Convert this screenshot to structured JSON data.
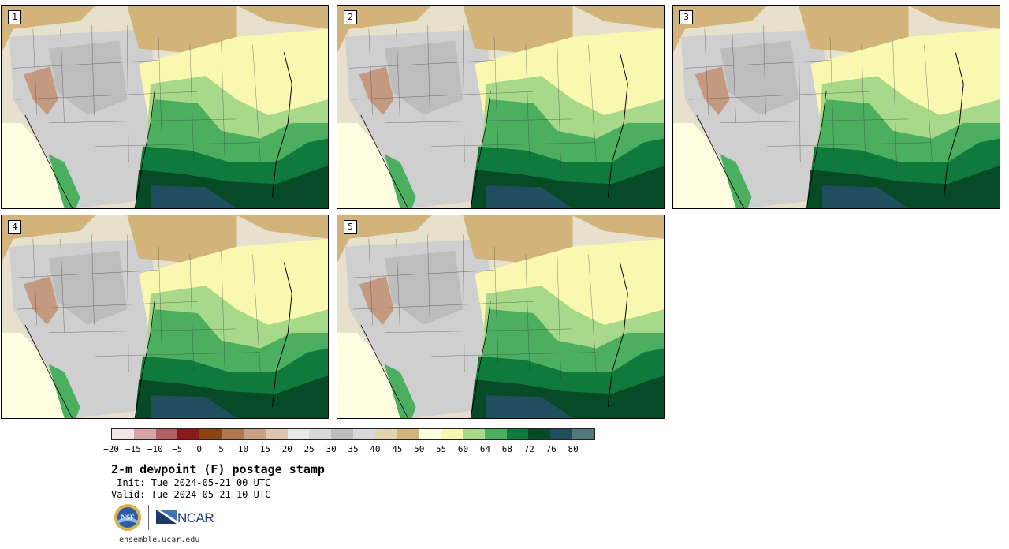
{
  "panels": [
    {
      "label": "1"
    },
    {
      "label": "2"
    },
    {
      "label": "3"
    },
    {
      "label": "4"
    },
    {
      "label": "5"
    }
  ],
  "colorbar": {
    "colors": [
      "#f3e6e6",
      "#d4a5a5",
      "#b06060",
      "#8b1a1a",
      "#8b4513",
      "#b07850",
      "#c9a085",
      "#e0c6b0",
      "#e8e8e8",
      "#d9d9d9",
      "#bdbdbd",
      "#d9d9d9",
      "#e2d4b0",
      "#d2b47a",
      "#fffde0",
      "#f8f8b0",
      "#a8d98a",
      "#4caf60",
      "#0f7a3c",
      "#064a26",
      "#1f4f5e",
      "#527a7a"
    ],
    "ticks": [
      "−20",
      "−15",
      "−10",
      "−5",
      "0",
      "5",
      "10",
      "15",
      "20",
      "25",
      "30",
      "35",
      "40",
      "45",
      "50",
      "55",
      "60",
      "64",
      "68",
      "72",
      "76",
      "80"
    ]
  },
  "title": "2-m dewpoint (F) postage stamp",
  "init_line": " Init: Tue 2024-05-21 00 UTC",
  "valid_line": "Valid: Tue 2024-05-21 10 UTC",
  "logos": {
    "left": "NSF",
    "right": "NCAR"
  },
  "site": "ensemble.ucar.edu"
}
